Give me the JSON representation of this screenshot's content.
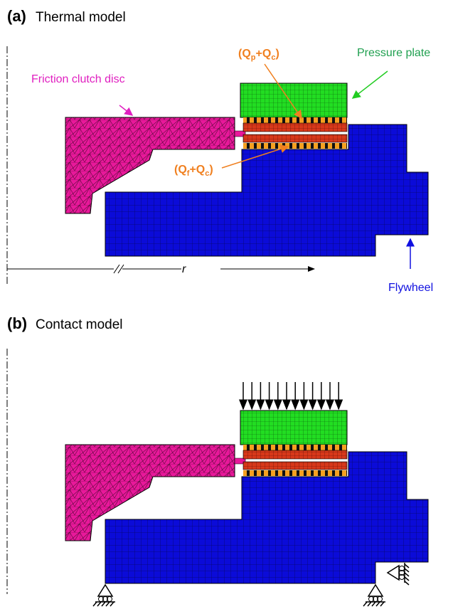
{
  "panel_a": {
    "label": "(a)",
    "title": "Thermal model",
    "labels": {
      "disc": "Friction clutch disc",
      "pressure_plate": "Pressure plate",
      "flywheel": "Flywheel",
      "heat_top": [
        "(Q",
        "p",
        "+Q",
        "c",
        ")"
      ],
      "heat_bottom": [
        "(Q",
        "f",
        "+Q",
        "c",
        ")"
      ],
      "radius": "r"
    }
  },
  "panel_b": {
    "label": "(b)",
    "title": "Contact model"
  }
}
